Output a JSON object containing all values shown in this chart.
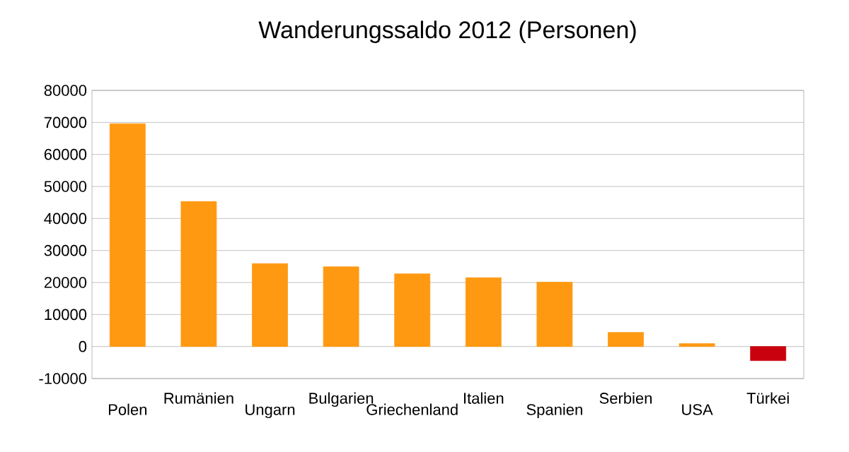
{
  "chart_data": {
    "type": "bar",
    "title": "Wanderungssaldo 2012 (Personen)",
    "categories": [
      "Polen",
      "Rumänien",
      "Ungarn",
      "Bulgarien",
      "Griechenland",
      "Italien",
      "Spanien",
      "Serbien",
      "USA",
      "Türkei"
    ],
    "values": [
      69600,
      45300,
      25900,
      24900,
      22700,
      21500,
      20100,
      4400,
      900,
      -4400
    ],
    "colors": [
      "#ff9912",
      "#ff9912",
      "#ff9912",
      "#ff9912",
      "#ff9912",
      "#ff9912",
      "#ff9912",
      "#ff9912",
      "#ff9912",
      "#c9000d"
    ],
    "ylim": [
      -10000,
      80000
    ],
    "yticks": [
      -10000,
      0,
      10000,
      20000,
      30000,
      40000,
      50000,
      60000,
      70000,
      80000
    ],
    "grid": "y"
  }
}
